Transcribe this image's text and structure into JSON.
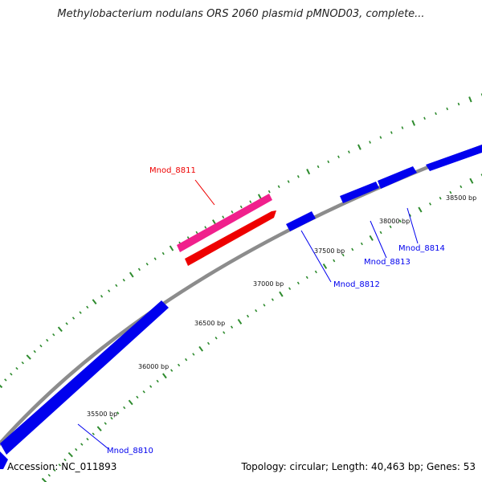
{
  "title": "Methylobacterium nodulans ORS 2060 plasmid pMNOD03, complete...",
  "footer": {
    "accession": "Accession: NC_011893",
    "summary": "Topology: circular; Length: 40,463 bp; Genes: 53"
  },
  "colors": {
    "backbone": "#8c8c8c",
    "tick": "#2e8b2e",
    "forward_gene": "#0000ee",
    "reverse_gene": "#ee0000",
    "pink_feature": "#f0208c"
  },
  "tick_labels": [
    "35500 bp",
    "36000 bp",
    "36500 bp",
    "37000 bp",
    "37500 bp",
    "38000 bp",
    "38500 bp"
  ],
  "genes": [
    {
      "name": "Mnod_8810",
      "color": "#0000ee"
    },
    {
      "name": "Mnod_8811",
      "color": "#ee0000"
    },
    {
      "name": "Mnod_8812",
      "color": "#0000ee"
    },
    {
      "name": "Mnod_8813",
      "color": "#0000ee"
    },
    {
      "name": "Mnod_8814",
      "color": "#0000ee"
    }
  ]
}
